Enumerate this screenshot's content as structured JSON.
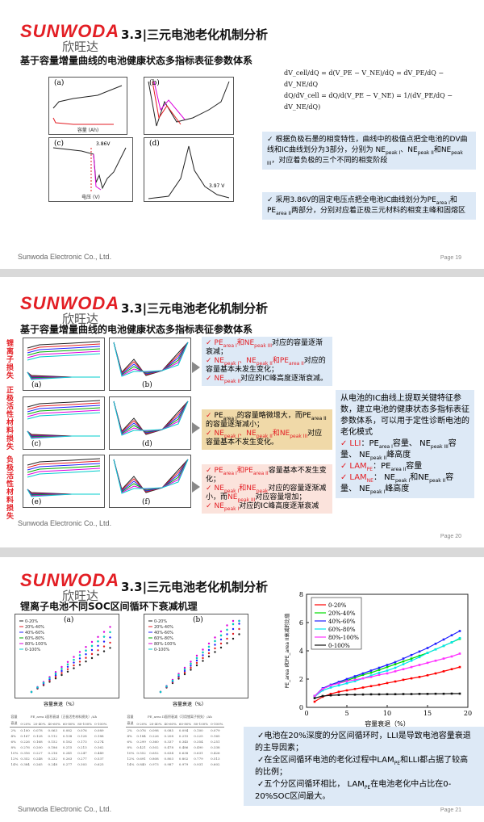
{
  "brand": {
    "logo_en": "SUNWODA",
    "logo_cn": "欣旺达",
    "footer": "Sunwoda Electronic Co., Ltd."
  },
  "slides": [
    {
      "title": "3.3|三元电池老化机制分析",
      "subtitle": "基于容量增量曲线的电池健康状态多指标表征参数体系",
      "page": "Page 19",
      "figures": [
        "(a)",
        "(b)",
        "(c)",
        "(d)"
      ],
      "formula": [
        "dV_cell/dQ = d(V_PE − V_NE)/dQ = dV_PE/dQ − dV_NE/dQ",
        "dQ/dV_cell = dQ/d(V_PE − V_NE) = 1/(dV_PE/dQ − dV_NE/dQ)"
      ],
      "fig_labels": {
        "voltage": "3.86V",
        "v397": "3.97 V",
        "xlabel_c": "电压 (V)",
        "xlabel_a": "容量 (Ah)"
      },
      "bullets": [
        {
          "text_a": "根据负极石墨的相变特性，曲线中的极值点把全电池的DV曲线和IC曲线划分为3部分，分别为 NE",
          "s1": "peak I",
          "t2": "、NE",
          "s2": "peak II",
          "t3": "和NE",
          "s3": "peak III",
          "t4": "，对应着负极的三个不同的相变阶段"
        },
        {
          "text_a": "采用3.86V的固定电压点把全电池IC曲线划分为PE",
          "s1": "area I",
          "t2": "和PE",
          "s2": "area II",
          "t3": "两部分，分别对应着正极三元材料的相变主峰和固熔区"
        }
      ]
    },
    {
      "title": "3.3|三元电池老化机制分析",
      "subtitle": "基于容量增量曲线的电池健康状态多指标表征参数体系",
      "page": "Page 20",
      "side_labels": [
        "锂离子损失",
        "正极活性材料损失",
        "负极活性材料损失"
      ],
      "figures": [
        "(a)",
        "(b)",
        "(c)",
        "(d)",
        "(e)",
        "(f)"
      ],
      "summary": {
        "intro": "从电池的IC曲线上提取关键特征参数，建立电池的健康状态多指标表征参数体系，可以用于定性诊断电池的老化模式",
        "items": [
          {
            "key": "LLI",
            "html": "：PE<sub>area I</sub>容量、 NE<sub>peak III</sub>容量、 NE<sub>peak II</sub>峰高度"
          },
          {
            "key": "LAM<sub>PE</sub>",
            "html": "：PE<sub>area II</sub>容量"
          },
          {
            "key": "LAM<sub>NE</sub>",
            "html": "： NE<sub>peak I</sub>和NE<sub>peak II</sub>容量、 NE<sub>peak I</sub>峰高度"
          }
        ]
      },
      "boxes": [
        [
          "<span class='red'>PE<sub>area I</sub>和NE<sub>peak III</sub></span>对应的容量逐渐衰减；",
          "<span class='red'>NE<sub>peak I</sub>、NE<sub>peak II</sub>和PE<sub>area II</sub></span>对应的容量基本未发生变化；",
          "<span class='red'>NE<sub>peak II</sub></span>对应的IC峰高度逐渐衰减。"
        ],
        [
          "PE<sub>area I</sub>的容量略微增大，而PE<sub>area II</sub>的容量逐渐减小；",
          "<span class='red'>NE<sub>peak I</sub>、NE<sub>peak II</sub>和NE<sub>peak III</sub></span>对应容量基本不发生变化。"
        ],
        [
          "<span class='red'>PE<sub>area I</sub>和PE<sub>area II</sub></span>容量基本不发生变化；",
          "<span class='red'>NE<sub>peak I</sub>和NE<sub>peak</sub></span>对应的容量逐渐减小，而<span class='red'>NE<sub>peak III</sub></span>对应容量增加；",
          "<span class='red'>NE<sub>peak I</sub></span>对应的IC峰高度逐渐衰减"
        ]
      ]
    },
    {
      "title": "3.3|三元电池老化机制分析",
      "subtitle": "锂离子电池不同SOC区间循环下衰减机理",
      "page": "Page 21",
      "small_figures": [
        "(a)",
        "(b)"
      ],
      "small_xlabel": "容量衰退（%）",
      "legend_small": [
        "0-20%",
        "20%-40%",
        "40%-60%",
        "60%-80%",
        "80%-100%",
        "0-100%"
      ],
      "bullets": [
        "✓电池在20%深度的分区间循环时，LLI是导致电池容量衰退的主导因素；",
        "✓在全区间循环电池的老化过程中LAM<sub>PE</sub>和LLI都占据了较高的比例；",
        "✓五个分区间循环相比， LAM<sub>PE</sub>在电池老化中占比在0-20%SOC区间最大。"
      ],
      "tables": [
        {
          "header": [
            "容量",
            "PE_area I面积衰减（正极活性材料损失）/Ah"
          ],
          "cols": [
            "衰退",
            "0-20%",
            "20-40%",
            "40-60%",
            "60-80%",
            "80-100%",
            "0-100%"
          ],
          "rows": [
            [
              "2%",
              "0.100",
              "0.078",
              "0.063",
              "0.082",
              "0.076",
              "0.089"
            ],
            [
              "4%",
              "0.167",
              "0.128",
              "0.112",
              "0.138",
              "0.128",
              "0.188"
            ],
            [
              "6%",
              "0.226",
              "0.168",
              "0.152",
              "0.182",
              "0.173",
              "0.274"
            ],
            [
              "8%",
              "0.276",
              "0.200",
              "0.186",
              "0.215",
              "0.213",
              "0.362"
            ],
            [
              "10%",
              "0.316",
              "0.227",
              "0.216",
              "0.241",
              "0.247",
              "0.449"
            ],
            [
              "12%",
              "0.352",
              "0.248",
              "0.232",
              "0.263",
              "0.277",
              "0.537"
            ],
            [
              "14%",
              "0.384",
              "0.265",
              "0.248",
              "0.277",
              "0.303",
              "0.625"
            ]
          ]
        },
        {
          "header": [
            "容量",
            "PE_area II面积衰减（可用锂离子损失）/Ah"
          ],
          "cols": [
            "衰退",
            "0-20%",
            "20-40%",
            "40-60%",
            "60-80%",
            "80-100%",
            "0-100%"
          ],
          "rows": [
            [
              "2%",
              "0.076",
              "0.098",
              "0.085",
              "0.094",
              "0.100",
              "0.079"
            ],
            [
              "4%",
              "0.184",
              "0.226",
              "0.208",
              "0.215",
              "0.225",
              "0.165"
            ],
            [
              "6%",
              "0.299",
              "0.360",
              "0.337",
              "0.345",
              "0.354",
              "0.251"
            ],
            [
              "8%",
              "0.421",
              "0.502",
              "0.478",
              "0.486",
              "0.490",
              "0.338"
            ],
            [
              "10%",
              "0.552",
              "0.652",
              "0.634",
              "0.638",
              "0.631",
              "0.426"
            ],
            [
              "12%",
              "0.691",
              "0.808",
              "0.803",
              "0.802",
              "0.779",
              "0.513"
            ],
            [
              "14%",
              "0.840",
              "0.973",
              "0.987",
              "0.979",
              "0.931",
              "0.602"
            ]
          ]
        }
      ],
      "chart_data": {
        "type": "line",
        "xlabel": "容量衰退（%）",
        "ylabel": "PE_area I和PE_area II衰减的比值",
        "xlim": [
          0,
          20
        ],
        "ylim": [
          0,
          8
        ],
        "xticks": [
          0,
          5,
          10,
          15,
          20
        ],
        "yticks": [
          0,
          2,
          4,
          6,
          8
        ],
        "legend": "top-left",
        "grid": false,
        "x": [
          1,
          2,
          3,
          4,
          5,
          6,
          7,
          8,
          9,
          10,
          11,
          12,
          13,
          14,
          15,
          16,
          17,
          18,
          19
        ],
        "series": [
          {
            "name": "0-20%",
            "color": "#ff0000",
            "values": [
              0.4,
              0.75,
              0.95,
              1.1,
              1.2,
              1.3,
              1.4,
              1.5,
              1.6,
              1.72,
              1.83,
              1.95,
              2.05,
              2.15,
              2.27,
              2.4,
              2.55,
              2.7,
              2.85
            ]
          },
          {
            "name": "20%-40%",
            "color": "#00dd00",
            "values": [
              0.8,
              1.3,
              1.55,
              1.75,
              1.9,
              2.1,
              2.3,
              2.45,
              2.65,
              2.85,
              3.05,
              3.25,
              3.45,
              3.65,
              3.85,
              4.1,
              4.35,
              4.6,
              4.85
            ]
          },
          {
            "name": "40%-60%",
            "color": "#2020ff",
            "values": [
              0.8,
              1.35,
              1.6,
              1.8,
              2.0,
              2.2,
              2.4,
              2.6,
              2.8,
              3.0,
              3.2,
              3.45,
              3.7,
              3.95,
              4.2,
              4.5,
              4.8,
              5.1,
              5.4
            ]
          },
          {
            "name": "60%-80%",
            "color": "#00e5ee",
            "values": [
              0.75,
              1.2,
              1.4,
              1.55,
              1.7,
              1.85,
              2.05,
              2.25,
              2.45,
              2.6,
              2.8,
              3.05,
              3.3,
              3.55,
              3.85,
              4.1,
              4.35,
              4.6,
              4.9
            ]
          },
          {
            "name": "80%-100%",
            "color": "#ff33ff",
            "values": [
              0.8,
              1.3,
              1.55,
              1.7,
              1.85,
              1.95,
              2.05,
              2.15,
              2.3,
              2.4,
              2.55,
              2.7,
              2.85,
              3.0,
              3.15,
              3.3,
              3.45,
              3.6,
              3.8
            ]
          },
          {
            "name": "0-100%",
            "color": "#111111",
            "values": [
              0.65,
              0.8,
              0.85,
              0.88,
              0.9,
              0.9,
              0.91,
              0.92,
              0.92,
              0.93,
              0.93,
              0.94,
              0.94,
              0.95,
              0.95,
              0.96,
              0.96,
              0.97,
              0.97
            ]
          }
        ]
      }
    }
  ]
}
